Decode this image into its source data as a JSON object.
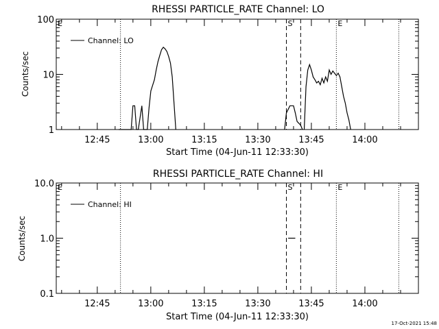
{
  "footer": {
    "timestamp": "17-Oct-2021 15:48"
  },
  "chart_data": [
    {
      "type": "line",
      "title": "RHESSI PARTICLE_RATE Channel: LO",
      "xlabel": "Start Time (04-Jun-11 12:33:30)",
      "ylabel": "Counts/sec",
      "y_scale": "log",
      "ylim": [
        1,
        100
      ],
      "xlim": [
        "12:33:30",
        "14:15:00"
      ],
      "x_ticks": [
        "12:45",
        "13:00",
        "13:15",
        "13:30",
        "13:45",
        "14:00"
      ],
      "y_ticks": [
        "1",
        "10",
        "100"
      ],
      "grid": false,
      "legend": {
        "position": "top-left",
        "entries": [
          "Channel: LO"
        ]
      },
      "markers": [
        {
          "label": "E",
          "time": "12:33:30",
          "style": "dotted"
        },
        {
          "label": "",
          "time": "12:51:30",
          "style": "dotted"
        },
        {
          "label": "S",
          "time": "13:38:00",
          "style": "dashed"
        },
        {
          "label": "",
          "time": "13:42:00",
          "style": "dashed"
        },
        {
          "label": "E",
          "time": "13:52:00",
          "style": "dotted"
        },
        {
          "label": "",
          "time": "14:09:30",
          "style": "dotted"
        }
      ],
      "series": [
        {
          "name": "Channel: LO",
          "segments": [
            [
              {
                "x": "12:51:00",
                "y": 1
              },
              {
                "x": "12:54:30",
                "y": 1
              },
              {
                "x": "12:55:00",
                "y": 2.7
              },
              {
                "x": "12:55:30",
                "y": 2.7
              },
              {
                "x": "12:56:00",
                "y": 1
              },
              {
                "x": "12:56:30",
                "y": 1
              },
              {
                "x": "12:57:30",
                "y": 2.7
              },
              {
                "x": "12:58:00",
                "y": 1
              },
              {
                "x": "12:59:00",
                "y": 1
              },
              {
                "x": "12:59:30",
                "y": 2.5
              },
              {
                "x": "13:00:00",
                "y": 5
              },
              {
                "x": "13:01:00",
                "y": 8
              },
              {
                "x": "13:01:30",
                "y": 12
              },
              {
                "x": "13:02:00",
                "y": 17
              },
              {
                "x": "13:02:30",
                "y": 22
              },
              {
                "x": "13:03:00",
                "y": 28
              },
              {
                "x": "13:03:30",
                "y": 31
              },
              {
                "x": "13:04:00",
                "y": 29
              },
              {
                "x": "13:04:30",
                "y": 26
              },
              {
                "x": "13:05:00",
                "y": 21
              },
              {
                "x": "13:05:30",
                "y": 16
              },
              {
                "x": "13:06:00",
                "y": 9
              },
              {
                "x": "13:06:30",
                "y": 3
              },
              {
                "x": "13:07:00",
                "y": 1
              }
            ],
            [
              {
                "x": "13:37:30",
                "y": 1
              },
              {
                "x": "13:38:00",
                "y": 2
              },
              {
                "x": "13:39:00",
                "y": 2.7
              },
              {
                "x": "13:40:00",
                "y": 2.7
              },
              {
                "x": "13:40:30",
                "y": 2
              },
              {
                "x": "13:41:00",
                "y": 1.4
              },
              {
                "x": "13:42:00",
                "y": 1.2
              },
              {
                "x": "13:42:30",
                "y": 1
              }
            ],
            [
              {
                "x": "13:43:00",
                "y": 1
              },
              {
                "x": "13:43:30",
                "y": 6
              },
              {
                "x": "13:44:00",
                "y": 12
              },
              {
                "x": "13:44:30",
                "y": 15
              },
              {
                "x": "13:45:00",
                "y": 12
              },
              {
                "x": "13:45:30",
                "y": 9
              },
              {
                "x": "13:46:00",
                "y": 8
              },
              {
                "x": "13:46:30",
                "y": 7
              },
              {
                "x": "13:47:00",
                "y": 7.5
              },
              {
                "x": "13:47:30",
                "y": 6.5
              },
              {
                "x": "13:48:00",
                "y": 8.5
              },
              {
                "x": "13:48:30",
                "y": 7
              },
              {
                "x": "13:49:00",
                "y": 9
              },
              {
                "x": "13:49:30",
                "y": 7.5
              },
              {
                "x": "13:50:00",
                "y": 12
              },
              {
                "x": "13:50:30",
                "y": 10
              },
              {
                "x": "13:51:00",
                "y": 11.5
              },
              {
                "x": "13:52:00",
                "y": 9.5
              },
              {
                "x": "13:52:30",
                "y": 10.5
              },
              {
                "x": "13:53:00",
                "y": 9
              },
              {
                "x": "13:53:30",
                "y": 6
              },
              {
                "x": "13:54:00",
                "y": 4
              },
              {
                "x": "13:54:30",
                "y": 3
              },
              {
                "x": "13:55:00",
                "y": 2
              },
              {
                "x": "13:55:30",
                "y": 1.5
              },
              {
                "x": "13:56:00",
                "y": 1
              }
            ]
          ]
        }
      ]
    },
    {
      "type": "line",
      "title": "RHESSI PARTICLE_RATE Channel: HI",
      "xlabel": "Start Time (04-Jun-11 12:33:30)",
      "ylabel": "Counts/sec",
      "y_scale": "log",
      "ylim": [
        0.1,
        10
      ],
      "xlim": [
        "12:33:30",
        "14:15:00"
      ],
      "x_ticks": [
        "12:45",
        "13:00",
        "13:15",
        "13:30",
        "13:45",
        "14:00"
      ],
      "y_ticks": [
        "0.1",
        "1.0",
        "10.0"
      ],
      "grid": false,
      "legend": {
        "position": "top-left",
        "entries": [
          "Channel: HI"
        ]
      },
      "markers": [
        {
          "label": "E",
          "time": "12:33:30",
          "style": "dotted"
        },
        {
          "label": "",
          "time": "12:51:30",
          "style": "dotted"
        },
        {
          "label": "S",
          "time": "13:38:00",
          "style": "dashed"
        },
        {
          "label": "",
          "time": "13:42:00",
          "style": "dashed"
        },
        {
          "label": "E",
          "time": "13:52:00",
          "style": "dotted"
        },
        {
          "label": "",
          "time": "14:09:30",
          "style": "dotted"
        }
      ],
      "series": [
        {
          "name": "Channel: HI",
          "segments": [
            [
              {
                "x": "13:38:30",
                "y": 1.0
              },
              {
                "x": "13:40:30",
                "y": 1.0
              }
            ]
          ]
        }
      ]
    }
  ]
}
